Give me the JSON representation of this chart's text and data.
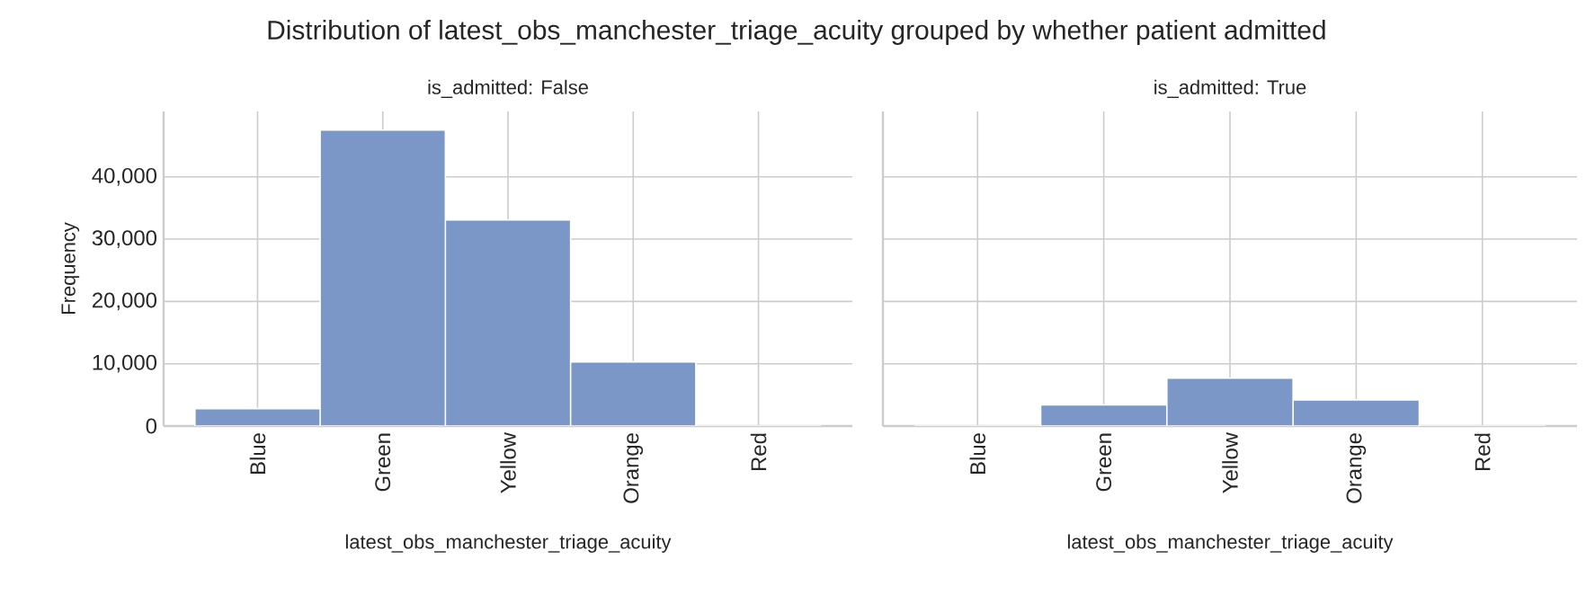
{
  "chart_data": [
    {
      "type": "bar",
      "title": "Distribution of latest_obs_manchester_triage_acuity grouped by whether patient admitted",
      "subtitle": "is_admitted: False",
      "xlabel": "latest_obs_manchester_triage_acuity",
      "ylabel": "Frequency",
      "categories": [
        "Blue",
        "Green",
        "Yellow",
        "Orange",
        "Red"
      ],
      "values": [
        2800,
        47500,
        33100,
        10300,
        0
      ],
      "color": "#7a97c7",
      "ylim": [
        0,
        50500
      ],
      "yticks": [
        0,
        {
          "value": 10000,
          "label": "10,000"
        },
        {
          "value": 20000,
          "label": "20,000"
        },
        {
          "value": 30000,
          "label": "30,000"
        },
        {
          "value": 40000,
          "label": "40,000"
        }
      ],
      "grid": true
    },
    {
      "type": "bar",
      "subtitle": "is_admitted: True",
      "xlabel": "latest_obs_manchester_triage_acuity",
      "categories": [
        "Blue",
        "Green",
        "Yellow",
        "Orange",
        "Red"
      ],
      "values": [
        0,
        3400,
        7700,
        4200,
        0
      ],
      "color": "#7a97c7",
      "ylim": [
        0,
        50500
      ],
      "yticks": [
        {
          "value": 0,
          "label": null
        },
        {
          "value": 10000,
          "label": null
        },
        {
          "value": 20000,
          "label": null
        },
        {
          "value": 30000,
          "label": null
        },
        {
          "value": 40000,
          "label": null
        }
      ],
      "grid": true,
      "tick_labels": "x"
    }
  ]
}
